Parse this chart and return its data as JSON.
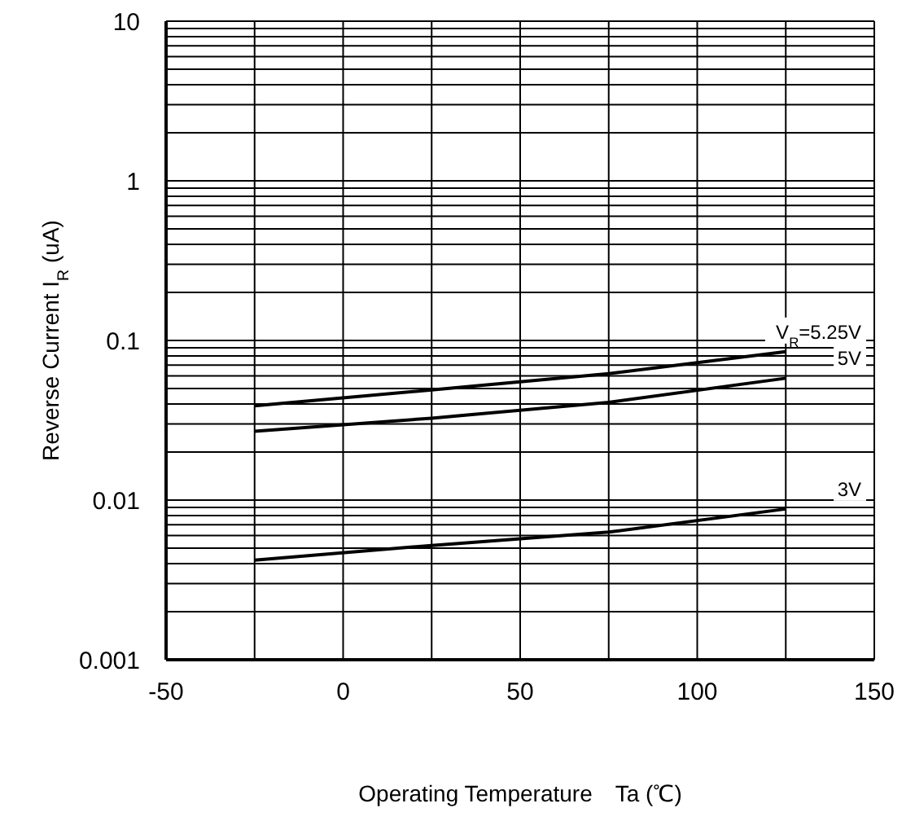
{
  "chart_data": {
    "type": "line",
    "xlabel": "Operating Temperature　Ta (℃)",
    "ylabel": "Reverse Current  I$_{R}$ (uA)",
    "x": [
      -25,
      25,
      75,
      125
    ],
    "series": [
      {
        "name": "V$_{R}$=5.25V",
        "color": "#000000",
        "values": [
          0.039,
          0.049,
          0.062,
          0.085
        ]
      },
      {
        "name": "5V",
        "color": "#000000",
        "values": [
          0.027,
          0.0326,
          0.041,
          0.058
        ]
      },
      {
        "name": "3V",
        "color": "#000000",
        "values": [
          0.0042,
          0.0052,
          0.0063,
          0.0088
        ]
      }
    ],
    "log": "y",
    "xlim": [
      -50,
      150
    ],
    "xticks": [
      -50,
      {
        "value": -25,
        "label": null
      },
      0,
      {
        "value": 25,
        "label": null
      },
      50,
      {
        "value": 75,
        "label": null
      },
      100,
      {
        "value": 125,
        "label": null
      },
      150
    ],
    "ylim": [
      0.001,
      10
    ],
    "yticks": [
      0.001,
      {
        "value": 0.002,
        "label": null
      },
      {
        "value": 0.003,
        "label": null
      },
      {
        "value": 0.004,
        "label": null
      },
      {
        "value": 0.005,
        "label": null
      },
      {
        "value": 0.006,
        "label": null
      },
      {
        "value": 0.007,
        "label": null
      },
      {
        "value": 0.008,
        "label": null
      },
      {
        "value": 0.009,
        "label": null
      },
      0.01,
      {
        "value": 0.02,
        "label": null
      },
      {
        "value": 0.03,
        "label": null
      },
      {
        "value": 0.04,
        "label": null
      },
      {
        "value": 0.05,
        "label": null
      },
      {
        "value": 0.06,
        "label": null
      },
      {
        "value": 0.07,
        "label": null
      },
      {
        "value": 0.08,
        "label": null
      },
      {
        "value": 0.09,
        "label": null
      },
      0.1,
      {
        "value": 0.2,
        "label": null
      },
      {
        "value": 0.3,
        "label": null
      },
      {
        "value": 0.4,
        "label": null
      },
      {
        "value": 0.5,
        "label": null
      },
      {
        "value": 0.6,
        "label": null
      },
      {
        "value": 0.7,
        "label": null
      },
      {
        "value": 0.8,
        "label": null
      },
      {
        "value": 0.9,
        "label": null
      },
      1,
      {
        "value": 2,
        "label": null
      },
      {
        "value": 3,
        "label": null
      },
      {
        "value": 4,
        "label": null
      },
      {
        "value": 5,
        "label": null
      },
      {
        "value": 6,
        "label": null
      },
      {
        "value": 7,
        "label": null
      },
      {
        "value": 8,
        "label": null
      },
      {
        "value": 9,
        "label": null
      },
      10
    ],
    "grid": true,
    "marker": "none",
    "line_style": "solid",
    "legend": false
  }
}
